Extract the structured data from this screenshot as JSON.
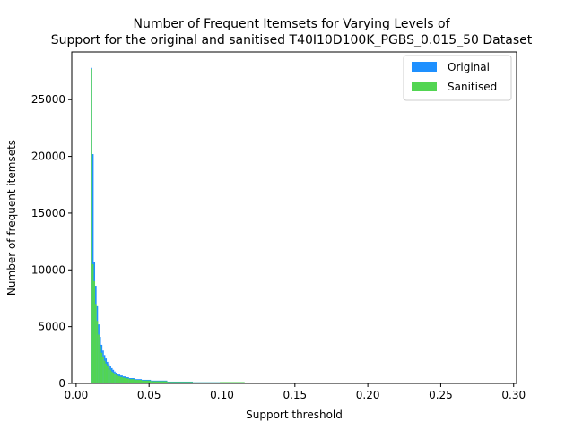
{
  "chart_data": {
    "type": "bar",
    "title_lines": [
      "Number of Frequent Itemsets for Varying Levels of",
      "Support for the original and sanitised T40I10D100K_PGBS_0.015_50 Dataset"
    ],
    "xlabel": "Support threshold",
    "ylabel": "Number of frequent itemsets",
    "xlim": [
      -0.003,
      0.302
    ],
    "ylim": [
      0,
      29200
    ],
    "xticks": [
      0.0,
      0.05,
      0.1,
      0.15,
      0.2,
      0.25,
      0.3
    ],
    "xtick_labels": [
      "0.00",
      "0.05",
      "0.10",
      "0.15",
      "0.20",
      "0.25",
      "0.30"
    ],
    "yticks": [
      0,
      5000,
      10000,
      15000,
      20000,
      25000
    ],
    "ytick_labels": [
      "0",
      "5000",
      "10000",
      "15000",
      "20000",
      "25000"
    ],
    "legend_position": "top-right",
    "series": [
      {
        "name": "Original",
        "color": "#1e90ff",
        "x": [
          0.0105,
          0.0115,
          0.0125,
          0.0135,
          0.0145,
          0.0155,
          0.0165,
          0.0175,
          0.0185,
          0.0195,
          0.0205,
          0.0215,
          0.0225,
          0.0235,
          0.0245,
          0.0255,
          0.0265,
          0.0275,
          0.0285,
          0.0295,
          0.031,
          0.033,
          0.035,
          0.0375,
          0.0425,
          0.0475,
          0.055,
          0.07,
          0.09,
          0.11
        ],
        "values": [
          27800,
          20200,
          10700,
          8600,
          6800,
          5200,
          4100,
          3400,
          2900,
          2500,
          2200,
          1900,
          1700,
          1500,
          1350,
          1200,
          1050,
          950,
          850,
          780,
          700,
          620,
          550,
          470,
          380,
          320,
          250,
          160,
          100,
          60
        ]
      },
      {
        "name": "Sanitised",
        "color": "#52d552",
        "x": [
          0.0105,
          0.0115,
          0.0125,
          0.0135,
          0.0145,
          0.0155,
          0.0165,
          0.0175,
          0.0185,
          0.0195,
          0.0205,
          0.0215,
          0.0225,
          0.0235,
          0.0245,
          0.0255,
          0.0265,
          0.0275,
          0.0285,
          0.0295,
          0.031,
          0.033,
          0.035,
          0.0375,
          0.0425,
          0.0475,
          0.055,
          0.07,
          0.09,
          0.107
        ],
        "values": [
          27700,
          10500,
          9000,
          7000,
          5500,
          4300,
          3300,
          2700,
          2300,
          2000,
          1750,
          1500,
          1350,
          1200,
          1050,
          950,
          850,
          760,
          680,
          620,
          560,
          500,
          440,
          380,
          310,
          260,
          200,
          130,
          90,
          120
        ]
      }
    ]
  }
}
